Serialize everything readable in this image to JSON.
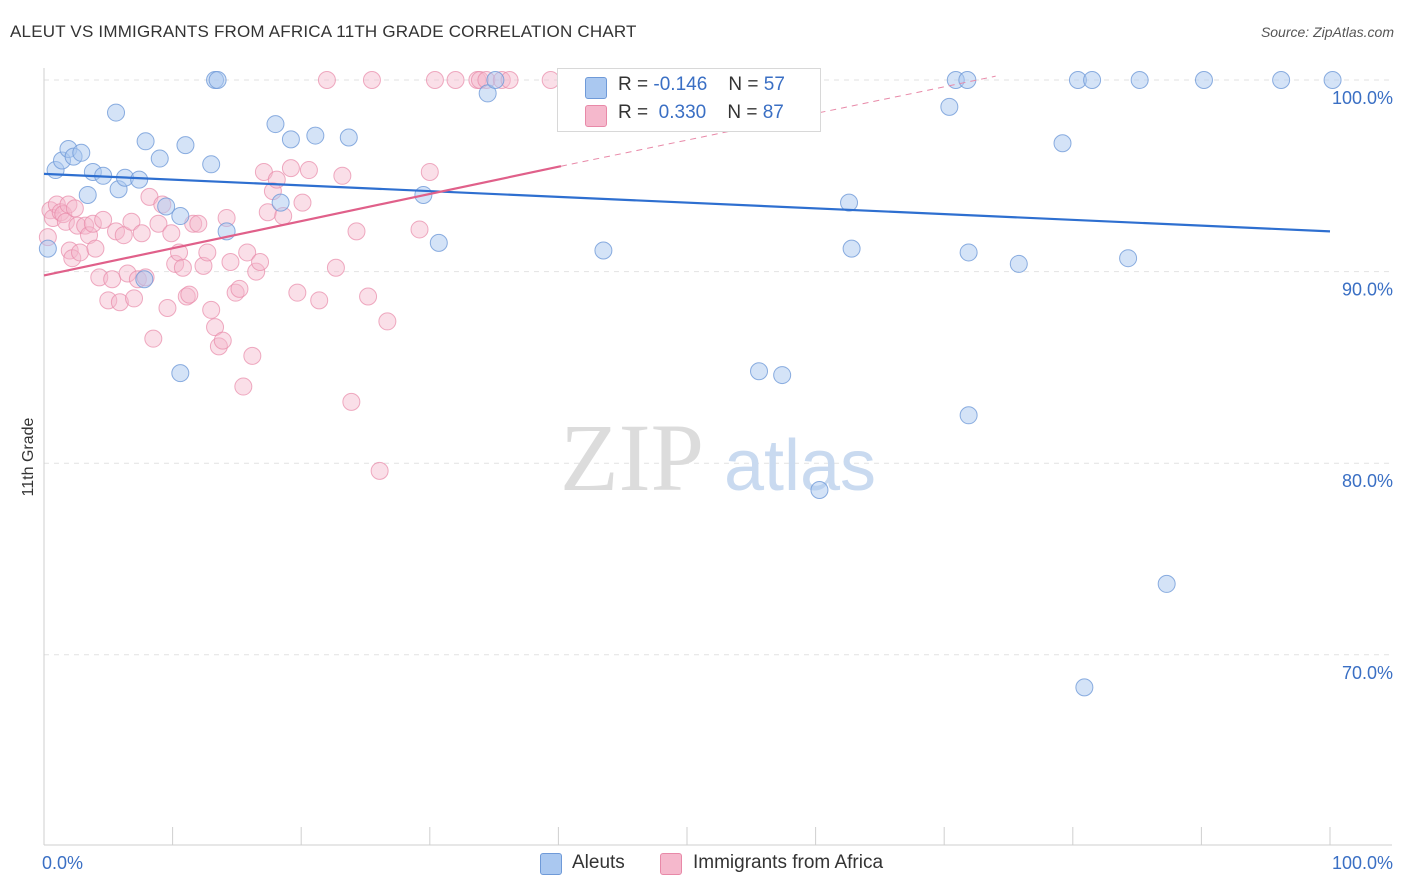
{
  "title": "ALEUT VS IMMIGRANTS FROM AFRICA 11TH GRADE CORRELATION CHART",
  "source": "Source: ZipAtlas.com",
  "watermark": {
    "zip": "ZIP",
    "atlas": "atlas"
  },
  "legend": {
    "r_label": "R =",
    "n_label": "N =",
    "rows": [
      {
        "r": "-0.146",
        "n": "57"
      },
      {
        "r": "0.330",
        "n": "87"
      }
    ]
  },
  "colors": {
    "blue_fill": "#aac8f0",
    "blue_stroke": "#6f9ad8",
    "blue_line": "#2e6fd0",
    "pink_fill": "#f5b8cc",
    "pink_stroke": "#e889a8",
    "pink_line": "#e0608a",
    "tick_label": "#3a6fc4"
  },
  "chart_data": {
    "type": "scatter",
    "xlabel": "",
    "ylabel": "11th Grade",
    "x_tick_labels": [
      "0.0%",
      "100.0%"
    ],
    "y_tick_labels": [
      "100.0%",
      "90.0%",
      "80.0%",
      "70.0%"
    ],
    "y_ticks": [
      100,
      90,
      80,
      70
    ],
    "xlim": [
      0,
      100
    ],
    "ylim": [
      61,
      101
    ],
    "grid": true,
    "legend_position": "top-center",
    "series": [
      {
        "name": "Aleuts",
        "trend": [
          [
            0,
            95.1
          ],
          [
            100,
            92.1
          ]
        ],
        "points": [
          [
            0.3,
            91.2
          ],
          [
            0.9,
            95.3
          ],
          [
            1.4,
            95.8
          ],
          [
            1.9,
            96.4
          ],
          [
            2.3,
            96.0
          ],
          [
            2.9,
            96.2
          ],
          [
            3.4,
            94.0
          ],
          [
            3.8,
            95.2
          ],
          [
            4.6,
            95.0
          ],
          [
            5.6,
            98.3
          ],
          [
            5.8,
            94.3
          ],
          [
            6.3,
            94.9
          ],
          [
            7.4,
            94.8
          ],
          [
            7.8,
            89.6
          ],
          [
            7.9,
            96.8
          ],
          [
            9.0,
            95.9
          ],
          [
            9.5,
            93.4
          ],
          [
            10.6,
            92.9
          ],
          [
            10.6,
            84.7
          ],
          [
            11.0,
            96.6
          ],
          [
            13.0,
            95.6
          ],
          [
            13.3,
            100.0
          ],
          [
            13.5,
            100.0
          ],
          [
            14.2,
            92.1
          ],
          [
            18.0,
            97.7
          ],
          [
            18.4,
            93.6
          ],
          [
            19.2,
            96.9
          ],
          [
            21.1,
            97.1
          ],
          [
            23.7,
            97.0
          ],
          [
            29.5,
            94.0
          ],
          [
            30.7,
            91.5
          ],
          [
            34.5,
            99.3
          ],
          [
            35.1,
            100.0
          ],
          [
            43.5,
            91.1
          ],
          [
            52.8,
            100.0
          ],
          [
            55.6,
            84.8
          ],
          [
            57.4,
            84.6
          ],
          [
            59.0,
            100.0
          ],
          [
            60.3,
            78.6
          ],
          [
            62.6,
            93.6
          ],
          [
            62.8,
            91.2
          ],
          [
            70.4,
            98.6
          ],
          [
            70.9,
            100.0
          ],
          [
            71.8,
            100.0
          ],
          [
            71.9,
            91.0
          ],
          [
            71.9,
            82.5
          ],
          [
            75.8,
            90.4
          ],
          [
            79.2,
            96.7
          ],
          [
            80.4,
            100.0
          ],
          [
            81.5,
            100.0
          ],
          [
            80.9,
            68.3
          ],
          [
            84.3,
            90.7
          ],
          [
            85.2,
            100.0
          ],
          [
            87.3,
            73.7
          ],
          [
            90.2,
            100.0
          ],
          [
            96.2,
            100.0
          ],
          [
            100.2,
            100.0
          ]
        ]
      },
      {
        "name": "Immigrants from Africa",
        "trend": [
          [
            0,
            89.8
          ],
          [
            40.2,
            95.5
          ]
        ],
        "trend_ext": [
          [
            40.2,
            95.5
          ],
          [
            74.0,
            100.2
          ]
        ],
        "points": [
          [
            0.3,
            91.8
          ],
          [
            0.5,
            93.2
          ],
          [
            0.7,
            92.8
          ],
          [
            1.0,
            93.5
          ],
          [
            1.3,
            93.1
          ],
          [
            1.5,
            93.0
          ],
          [
            1.7,
            92.6
          ],
          [
            1.9,
            93.5
          ],
          [
            2.0,
            91.1
          ],
          [
            2.2,
            90.7
          ],
          [
            2.4,
            93.3
          ],
          [
            2.6,
            92.4
          ],
          [
            2.8,
            91.0
          ],
          [
            3.2,
            92.4
          ],
          [
            3.5,
            91.9
          ],
          [
            3.8,
            92.5
          ],
          [
            4.0,
            91.2
          ],
          [
            4.3,
            89.7
          ],
          [
            4.6,
            92.7
          ],
          [
            5.0,
            88.5
          ],
          [
            5.3,
            89.6
          ],
          [
            5.6,
            92.1
          ],
          [
            5.9,
            88.4
          ],
          [
            6.2,
            91.9
          ],
          [
            6.5,
            89.9
          ],
          [
            6.8,
            92.6
          ],
          [
            7.0,
            88.6
          ],
          [
            7.3,
            89.6
          ],
          [
            7.6,
            92.0
          ],
          [
            7.9,
            89.7
          ],
          [
            8.2,
            93.9
          ],
          [
            8.5,
            86.5
          ],
          [
            8.9,
            92.5
          ],
          [
            9.2,
            93.5
          ],
          [
            9.6,
            88.1
          ],
          [
            9.9,
            92.0
          ],
          [
            10.2,
            90.4
          ],
          [
            10.5,
            91.0
          ],
          [
            10.8,
            90.2
          ],
          [
            11.1,
            88.7
          ],
          [
            11.3,
            88.8
          ],
          [
            11.6,
            92.5
          ],
          [
            12.0,
            92.5
          ],
          [
            12.4,
            90.3
          ],
          [
            12.7,
            91.0
          ],
          [
            13.0,
            88.0
          ],
          [
            13.3,
            87.1
          ],
          [
            13.6,
            86.1
          ],
          [
            13.9,
            86.4
          ],
          [
            14.2,
            92.8
          ],
          [
            14.5,
            90.5
          ],
          [
            14.9,
            88.9
          ],
          [
            15.2,
            89.1
          ],
          [
            15.5,
            84.0
          ],
          [
            15.8,
            91.0
          ],
          [
            16.2,
            85.6
          ],
          [
            16.5,
            90.0
          ],
          [
            16.8,
            90.5
          ],
          [
            17.1,
            95.2
          ],
          [
            17.4,
            93.1
          ],
          [
            17.8,
            94.2
          ],
          [
            18.1,
            94.8
          ],
          [
            18.6,
            92.9
          ],
          [
            19.2,
            95.4
          ],
          [
            19.7,
            88.9
          ],
          [
            20.1,
            93.6
          ],
          [
            20.6,
            95.3
          ],
          [
            21.4,
            88.5
          ],
          [
            22.0,
            100.0
          ],
          [
            22.7,
            90.2
          ],
          [
            23.2,
            95.0
          ],
          [
            23.9,
            83.2
          ],
          [
            24.3,
            92.1
          ],
          [
            25.2,
            88.7
          ],
          [
            25.5,
            100.0
          ],
          [
            26.1,
            79.6
          ],
          [
            26.7,
            87.4
          ],
          [
            29.2,
            92.2
          ],
          [
            30.4,
            100.0
          ],
          [
            32.0,
            100.0
          ],
          [
            33.7,
            100.0
          ],
          [
            33.9,
            100.0
          ],
          [
            34.4,
            100.0
          ],
          [
            35.6,
            100.0
          ],
          [
            36.2,
            100.0
          ],
          [
            39.4,
            100.0
          ],
          [
            30.0,
            95.2
          ]
        ]
      }
    ]
  }
}
